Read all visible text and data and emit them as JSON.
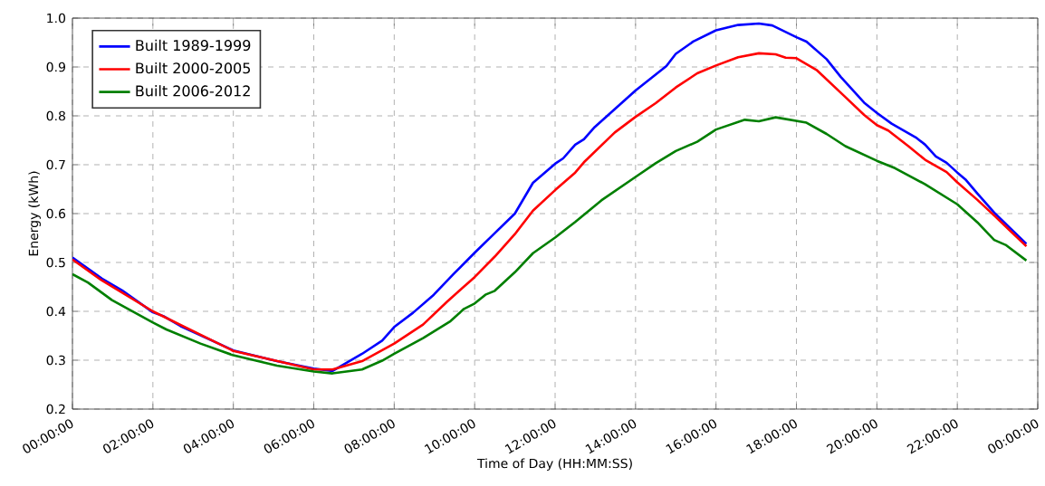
{
  "chart_data": {
    "type": "line",
    "xlabel": "Time of Day (HH:MM:SS)",
    "ylabel": "Energy (kWh)",
    "xlim": [
      "2000-01-01T00:00",
      "2000-01-02T00:00"
    ],
    "ylim": [
      0.2,
      1.0
    ],
    "xticks": [
      {
        "value": "2000-01-01T00:00",
        "label": "00:00:00"
      },
      {
        "value": "2000-01-01T02:00",
        "label": "02:00:00"
      },
      {
        "value": "2000-01-01T04:00",
        "label": "04:00:00"
      },
      {
        "value": "2000-01-01T06:00",
        "label": "06:00:00"
      },
      {
        "value": "2000-01-01T08:00",
        "label": "08:00:00"
      },
      {
        "value": "2000-01-01T10:00",
        "label": "10:00:00"
      },
      {
        "value": "2000-01-01T12:00",
        "label": "12:00:00"
      },
      {
        "value": "2000-01-01T14:00",
        "label": "14:00:00"
      },
      {
        "value": "2000-01-01T16:00",
        "label": "16:00:00"
      },
      {
        "value": "2000-01-01T18:00",
        "label": "18:00:00"
      },
      {
        "value": "2000-01-01T20:00",
        "label": "20:00:00"
      },
      {
        "value": "2000-01-01T22:00",
        "label": "22:00:00"
      },
      {
        "value": "2000-01-02T00:00",
        "label": "00:00:00"
      }
    ],
    "yticks": [
      0.2,
      0.3,
      0.4,
      0.5,
      0.6,
      0.7,
      0.8,
      0.9,
      {
        "value": 1.0,
        "label": "1.0"
      }
    ],
    "grid": true,
    "legend": "top left",
    "line_style": "solid",
    "marker": "none",
    "series": [
      {
        "name": "Built 1989-1999",
        "color": "#0000ff",
        "x": [
          "2000-01-01T00:00",
          "2000-01-01T00:44",
          "2000-01-01T01:14",
          "2000-01-01T02:00",
          "2000-01-01T02:16",
          "2000-01-01T02:41",
          "2000-01-01T04:00",
          "2000-01-01T05:05",
          "2000-01-01T06:00",
          "2000-01-01T06:28",
          "2000-01-01T07:12",
          "2000-01-01T07:42",
          "2000-01-01T08:00",
          "2000-01-01T08:28",
          "2000-01-01T08:59",
          "2000-01-01T09:29",
          "2000-01-01T10:00",
          "2000-01-01T10:30",
          "2000-01-01T11:00",
          "2000-01-01T11:27",
          "2000-01-01T12:00",
          "2000-01-01T12:12",
          "2000-01-01T12:30",
          "2000-01-01T12:43",
          "2000-01-01T12:59",
          "2000-01-01T14:00",
          "2000-01-01T14:46",
          "2000-01-01T15:00",
          "2000-01-01T15:26",
          "2000-01-01T16:00",
          "2000-01-01T16:33",
          "2000-01-01T17:04",
          "2000-01-01T17:24",
          "2000-01-01T18:00",
          "2000-01-01T18:15",
          "2000-01-01T18:45",
          "2000-01-01T19:06",
          "2000-01-01T19:41",
          "2000-01-01T20:00",
          "2000-01-01T20:22",
          "2000-01-01T20:58",
          "2000-01-01T21:12",
          "2000-01-01T21:28",
          "2000-01-01T21:44",
          "2000-01-01T22:00",
          "2000-01-01T22:12",
          "2000-01-01T22:30",
          "2000-01-01T22:55",
          "2000-01-01T23:43"
        ],
        "values": [
          0.51,
          0.467,
          0.443,
          0.398,
          0.39,
          0.37,
          0.32,
          0.298,
          0.283,
          0.278,
          0.313,
          0.34,
          0.368,
          0.397,
          0.434,
          0.477,
          0.52,
          0.56,
          0.6,
          0.663,
          0.702,
          0.713,
          0.741,
          0.752,
          0.777,
          0.852,
          0.902,
          0.927,
          0.952,
          0.975,
          0.986,
          0.989,
          0.985,
          0.961,
          0.952,
          0.916,
          0.88,
          0.827,
          0.806,
          0.784,
          0.756,
          0.741,
          0.717,
          0.704,
          0.684,
          0.67,
          0.641,
          0.602,
          0.538
        ]
      },
      {
        "name": "Built 2000-2005",
        "color": "#ff0000",
        "x": [
          "2000-01-01T00:00",
          "2000-01-01T00:43",
          "2000-01-01T02:00",
          "2000-01-01T04:00",
          "2000-01-01T06:00",
          "2000-01-01T06:28",
          "2000-01-01T07:12",
          "2000-01-01T08:00",
          "2000-01-01T08:43",
          "2000-01-01T09:19",
          "2000-01-01T10:00",
          "2000-01-01T10:30",
          "2000-01-01T11:00",
          "2000-01-01T11:27",
          "2000-01-01T12:00",
          "2000-01-01T12:30",
          "2000-01-01T12:43",
          "2000-01-01T13:29",
          "2000-01-01T14:00",
          "2000-01-01T14:30",
          "2000-01-01T15:00",
          "2000-01-01T15:32",
          "2000-01-01T16:00",
          "2000-01-01T16:33",
          "2000-01-01T17:04",
          "2000-01-01T17:29",
          "2000-01-01T17:44",
          "2000-01-01T18:00",
          "2000-01-01T18:30",
          "2000-01-01T19:11",
          "2000-01-01T19:41",
          "2000-01-01T20:00",
          "2000-01-01T20:17",
          "2000-01-01T20:47",
          "2000-01-01T21:12",
          "2000-01-01T21:44",
          "2000-01-01T22:00",
          "2000-01-01T22:30",
          "2000-01-01T22:55",
          "2000-01-01T23:43"
        ],
        "values": [
          0.506,
          0.464,
          0.4,
          0.319,
          0.281,
          0.281,
          0.298,
          0.334,
          0.373,
          0.42,
          0.47,
          0.512,
          0.558,
          0.606,
          0.648,
          0.684,
          0.705,
          0.766,
          0.798,
          0.826,
          0.858,
          0.887,
          0.903,
          0.92,
          0.928,
          0.926,
          0.919,
          0.918,
          0.894,
          0.841,
          0.802,
          0.781,
          0.77,
          0.738,
          0.71,
          0.685,
          0.664,
          0.628,
          0.596,
          0.533
        ]
      },
      {
        "name": "Built 2006-2012",
        "color": "#007f00",
        "x": [
          "2000-01-01T00:00",
          "2000-01-01T00:23",
          "2000-01-01T00:59",
          "2000-01-01T02:00",
          "2000-01-01T02:20",
          "2000-01-01T03:11",
          "2000-01-01T04:00",
          "2000-01-01T05:05",
          "2000-01-01T06:00",
          "2000-01-01T06:28",
          "2000-01-01T07:12",
          "2000-01-01T07:42",
          "2000-01-01T08:00",
          "2000-01-01T08:43",
          "2000-01-01T09:24",
          "2000-01-01T09:44",
          "2000-01-01T10:00",
          "2000-01-01T10:16",
          "2000-01-01T10:30",
          "2000-01-01T11:00",
          "2000-01-01T11:27",
          "2000-01-01T12:00",
          "2000-01-01T12:30",
          "2000-01-01T13:09",
          "2000-01-01T14:00",
          "2000-01-01T14:30",
          "2000-01-01T15:00",
          "2000-01-01T15:32",
          "2000-01-01T16:00",
          "2000-01-01T16:43",
          "2000-01-01T17:04",
          "2000-01-01T17:29",
          "2000-01-01T18:15",
          "2000-01-01T18:45",
          "2000-01-01T19:13",
          "2000-01-01T20:00",
          "2000-01-01T20:27",
          "2000-01-01T21:12",
          "2000-01-01T22:00",
          "2000-01-01T22:30",
          "2000-01-01T22:55",
          "2000-01-01T23:12",
          "2000-01-01T23:43"
        ],
        "values": [
          0.476,
          0.459,
          0.423,
          0.377,
          0.363,
          0.334,
          0.31,
          0.289,
          0.277,
          0.273,
          0.281,
          0.299,
          0.313,
          0.345,
          0.38,
          0.405,
          0.416,
          0.434,
          0.442,
          0.48,
          0.519,
          0.551,
          0.583,
          0.627,
          0.675,
          0.703,
          0.728,
          0.747,
          0.772,
          0.792,
          0.789,
          0.797,
          0.786,
          0.763,
          0.738,
          0.708,
          0.693,
          0.66,
          0.619,
          0.582,
          0.546,
          0.536,
          0.504
        ]
      }
    ]
  }
}
